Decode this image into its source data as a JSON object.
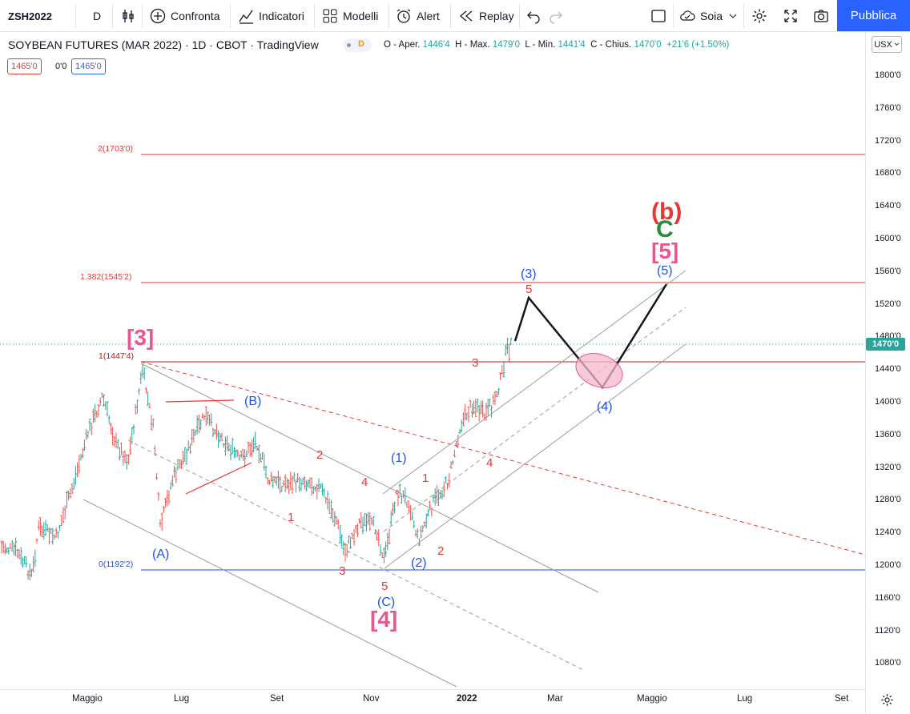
{
  "toolbar": {
    "symbol": "ZSH2022",
    "interval": "D",
    "compare": "Confronta",
    "indicators": "Indicatori",
    "templates": "Modelli",
    "alert": "Alert",
    "replay": "Replay",
    "layout_name": "Soia",
    "publish": "Pubblica"
  },
  "legend": {
    "title": "SOYBEAN FUTURES (MAR 2022) · 1D · CBOT · TradingView",
    "badge": "D",
    "o_label": "O - Aper.",
    "o_value": "1446'4",
    "h_label": "H - Max.",
    "h_value": "1479'0",
    "l_label": "L - Min.",
    "l_value": "1441'4",
    "c_label": "C - Chius.",
    "c_value": "1470'0",
    "change": "+21'6 (+1.50%)"
  },
  "price_boxes": {
    "bid": "1465'0",
    "spread": "0'0",
    "ask": "1465'0"
  },
  "currency": "USX",
  "current_price": "1470'0",
  "y_axis": [
    "1800'0",
    "1760'0",
    "1720'0",
    "1680'0",
    "1640'0",
    "1600'0",
    "1560'0",
    "1520'0",
    "1480'0",
    "1440'0",
    "1400'0",
    "1360'0",
    "1320'0",
    "1280'0",
    "1240'0",
    "1200'0",
    "1160'0",
    "1120'0",
    "1080'0"
  ],
  "x_axis": [
    "Maggio",
    "Lug",
    "Set",
    "Nov",
    "2022",
    "Mar",
    "Maggio",
    "Lug",
    "Set"
  ],
  "fib_levels": {
    "f2": "2(1703'0)",
    "f1382": "1.382(1545'2)",
    "f1": "1(1447'4)",
    "f0": "0(1192'2)"
  },
  "wave_labels": {
    "w3_big": "[3]",
    "w4_big": "[4]",
    "w5_big": "[5]",
    "b_paren": "(b)",
    "c_big": "C",
    "A": "(A)",
    "B": "(B)",
    "C": "(C)",
    "w1_blue": "(1)",
    "w2_blue": "(2)",
    "w3_blue": "(3)",
    "w4_blue": "(4)",
    "w5_blue": "(5)",
    "r1a": "1",
    "r2a": "2",
    "r3a": "3",
    "r4a": "4",
    "r5a": "5",
    "r1b": "1",
    "r2b": "2",
    "r3b": "3",
    "r4b": "4",
    "r5b": "5"
  },
  "colors": {
    "accent": "#2962ff",
    "up": "#26a69a",
    "fib_red": "#e53935",
    "fib_blue": "#1e53e5",
    "pink": "#e8578f",
    "green": "#2e8b3a"
  }
}
